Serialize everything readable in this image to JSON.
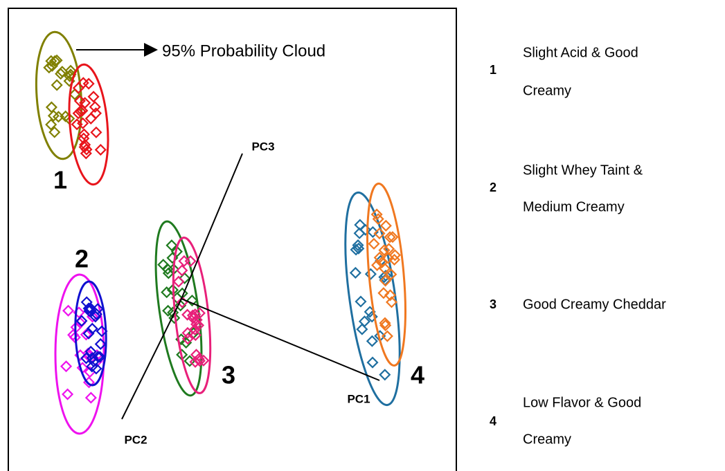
{
  "annotation": "95% Probability Cloud",
  "axes": {
    "pc1": "PC1",
    "pc2": "PC2",
    "pc3": "PC3"
  },
  "cluster_labels": [
    "1",
    "2",
    "3",
    "4"
  ],
  "legend": [
    {
      "number": "1",
      "lines": [
        "Slight Acid & Good",
        "Creamy"
      ]
    },
    {
      "number": "2",
      "lines": [
        "Slight Whey Taint &",
        "Medium Creamy"
      ]
    },
    {
      "number": "3",
      "lines": [
        "Good Creamy Cheddar"
      ]
    },
    {
      "number": "4",
      "lines": [
        "Low Flavor & Good",
        "Creamy"
      ]
    }
  ]
}
